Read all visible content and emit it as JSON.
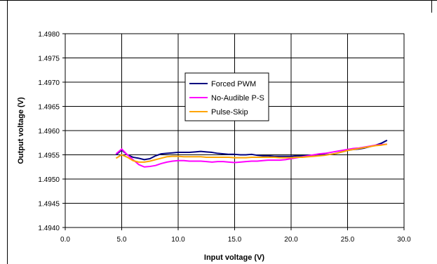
{
  "chart_data": {
    "type": "line",
    "title": "",
    "xlabel": "Input voltage (V)",
    "ylabel": "Output voltage (V)",
    "xlim": [
      0,
      30
    ],
    "ylim": [
      1.494,
      1.498
    ],
    "x_ticks": [
      "0.0",
      "5.0",
      "10.0",
      "15.0",
      "20.0",
      "25.0",
      "30.0"
    ],
    "y_ticks": [
      "1.4940",
      "1.4945",
      "1.4950",
      "1.4955",
      "1.4960",
      "1.4965",
      "1.4970",
      "1.4975",
      "1.4980"
    ],
    "grid": true,
    "legend_position": "upper-center",
    "series": [
      {
        "name": "Forced PWM",
        "color": "#000080",
        "x": [
          4.5,
          5.0,
          5.5,
          6.0,
          6.5,
          7.0,
          7.5,
          8.0,
          8.5,
          9.0,
          9.5,
          10.0,
          10.5,
          11.0,
          11.5,
          12.0,
          12.5,
          13.0,
          13.5,
          14.0,
          14.5,
          15.0,
          15.5,
          16.0,
          16.5,
          17.0,
          17.5,
          18.0,
          18.5,
          19.0,
          19.5,
          20.0,
          20.5,
          21.0,
          21.5,
          22.0,
          22.5,
          23.0,
          23.5,
          24.0,
          24.5,
          25.0,
          25.5,
          26.0,
          26.5,
          27.0,
          27.5,
          28.0,
          28.5
        ],
        "values": [
          1.4955,
          1.4956,
          1.4955,
          1.49545,
          1.49543,
          1.4954,
          1.49542,
          1.49548,
          1.49552,
          1.49553,
          1.49554,
          1.49555,
          1.49555,
          1.49555,
          1.49556,
          1.49557,
          1.49556,
          1.49555,
          1.49553,
          1.49552,
          1.49551,
          1.49551,
          1.4955,
          1.4955,
          1.49551,
          1.49549,
          1.49548,
          1.49548,
          1.49547,
          1.49547,
          1.49547,
          1.49547,
          1.49548,
          1.49548,
          1.49549,
          1.49549,
          1.4955,
          1.4955,
          1.49551,
          1.49553,
          1.49556,
          1.49559,
          1.49561,
          1.49562,
          1.49564,
          1.49567,
          1.4957,
          1.49574,
          1.4958
        ]
      },
      {
        "name": "No-Audible P-S",
        "color": "#ff00ff",
        "x": [
          4.5,
          5.0,
          5.5,
          6.0,
          6.5,
          7.0,
          7.5,
          8.0,
          8.5,
          9.0,
          9.5,
          10.0,
          10.5,
          11.0,
          11.5,
          12.0,
          12.5,
          13.0,
          13.5,
          14.0,
          14.5,
          15.0,
          15.5,
          16.0,
          16.5,
          17.0,
          17.5,
          18.0,
          18.5,
          19.0,
          19.5,
          20.0,
          20.5,
          21.0,
          21.5,
          22.0,
          22.5,
          23.0,
          23.5,
          24.0,
          24.5,
          25.0,
          25.5,
          26.0,
          26.5,
          27.0,
          27.5,
          28.0,
          28.5
        ],
        "values": [
          1.49552,
          1.49562,
          1.4955,
          1.4954,
          1.4953,
          1.49525,
          1.49526,
          1.49528,
          1.49532,
          1.49535,
          1.49537,
          1.49538,
          1.49538,
          1.49537,
          1.49537,
          1.49537,
          1.49536,
          1.49535,
          1.49536,
          1.49536,
          1.49535,
          1.49534,
          1.49535,
          1.49536,
          1.49537,
          1.49537,
          1.49538,
          1.49539,
          1.49539,
          1.49539,
          1.4954,
          1.49542,
          1.49544,
          1.49546,
          1.49548,
          1.4955,
          1.49552,
          1.49553,
          1.49555,
          1.49557,
          1.49559,
          1.49561,
          1.49563,
          1.49564,
          1.49566,
          1.49568,
          1.4957,
          1.49571,
          1.49572
        ]
      },
      {
        "name": "Pulse-Skip",
        "color": "#ffa500",
        "x": [
          4.5,
          5.0,
          5.5,
          6.0,
          6.5,
          7.0,
          7.5,
          8.0,
          8.5,
          9.0,
          9.5,
          10.0,
          10.5,
          11.0,
          11.5,
          12.0,
          12.5,
          13.0,
          13.5,
          14.0,
          14.5,
          15.0,
          15.5,
          16.0,
          16.5,
          17.0,
          17.5,
          18.0,
          18.5,
          19.0,
          19.5,
          20.0,
          20.5,
          21.0,
          21.5,
          22.0,
          22.5,
          23.0,
          23.5,
          24.0,
          24.5,
          25.0,
          25.5,
          26.0,
          26.5,
          27.0,
          27.5,
          28.0,
          28.5
        ],
        "values": [
          1.49543,
          1.4955,
          1.49545,
          1.49538,
          1.49535,
          1.49535,
          1.49537,
          1.4954,
          1.49543,
          1.49546,
          1.49547,
          1.49547,
          1.49546,
          1.49546,
          1.49546,
          1.49546,
          1.49545,
          1.49545,
          1.49545,
          1.49545,
          1.49545,
          1.49544,
          1.49544,
          1.49544,
          1.49545,
          1.49545,
          1.49545,
          1.49545,
          1.49545,
          1.49544,
          1.49544,
          1.49544,
          1.49545,
          1.49545,
          1.49546,
          1.49547,
          1.49548,
          1.49549,
          1.49551,
          1.49553,
          1.49556,
          1.49559,
          1.49561,
          1.49563,
          1.49565,
          1.49567,
          1.49569,
          1.4957,
          1.49572
        ]
      }
    ]
  }
}
